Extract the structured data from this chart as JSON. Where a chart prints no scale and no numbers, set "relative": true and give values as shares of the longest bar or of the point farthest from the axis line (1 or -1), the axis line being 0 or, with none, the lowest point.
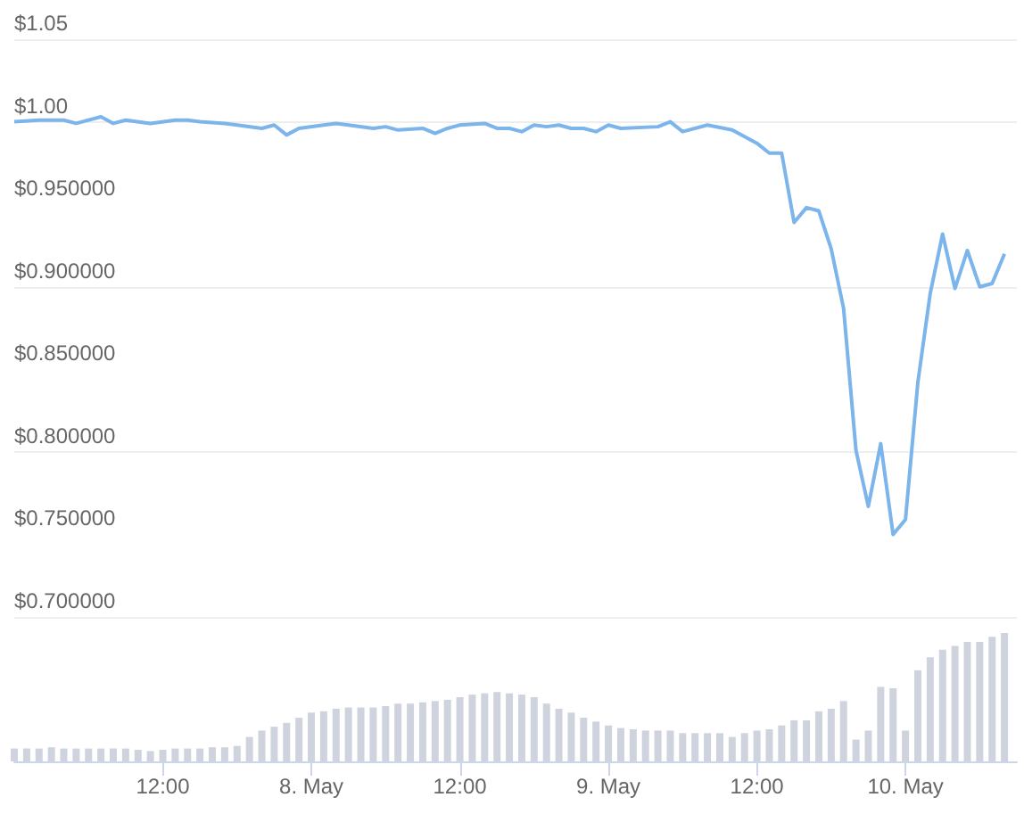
{
  "chart_data": [
    {
      "type": "line",
      "x": [
        "--05-07T00:00",
        "--05-07T02:00",
        "--05-07T04:00",
        "--05-07T05:00",
        "--05-07T07:00",
        "--05-07T08:00",
        "--05-07T09:00",
        "--05-07T11:00",
        "--05-07T13:00",
        "--05-07T14:00",
        "--05-07T15:00",
        "--05-07T17:00",
        "--05-07T18:00",
        "--05-07T20:00",
        "--05-07T21:00",
        "--05-07T22:00",
        "--05-07T23:00",
        "--05-08T01:00",
        "--05-08T02:00",
        "--05-08T03:00",
        "--05-08T05:00",
        "--05-08T06:00",
        "--05-08T07:00",
        "--05-08T09:00",
        "--05-08T10:00",
        "--05-08T11:00",
        "--05-08T12:00",
        "--05-08T14:00",
        "--05-08T15:00",
        "--05-08T16:00",
        "--05-08T17:00",
        "--05-08T18:00",
        "--05-08T19:00",
        "--05-08T20:00",
        "--05-08T21:00",
        "--05-08T22:00",
        "--05-08T23:00",
        "--05-09T00:00",
        "--05-09T01:00",
        "--05-09T04:00",
        "--05-09T05:00",
        "--05-09T06:00",
        "--05-09T08:00",
        "--05-09T10:00",
        "--05-09T11:00",
        "--05-09T12:00",
        "--05-09T13:00",
        "--05-09T14:00",
        "--05-09T15:00",
        "--05-09T16:00",
        "--05-09T17:00",
        "--05-09T18:00",
        "--05-09T19:00",
        "--05-09T20:00",
        "--05-09T21:00",
        "--05-09T22:00",
        "--05-09T23:00",
        "--05-10T00:00",
        "--05-10T01:00",
        "--05-10T02:00",
        "--05-10T03:00",
        "--05-10T04:00",
        "--05-10T05:00",
        "--05-10T06:00",
        "--05-10T07:00",
        "--05-10T08:00"
      ],
      "series": [
        {
          "color": "#7cb5ec",
          "values": [
            1.0,
            1.001,
            1.001,
            0.999,
            1.003,
            0.999,
            1.001,
            0.999,
            1.001,
            1.001,
            1.0,
            0.999,
            0.998,
            0.996,
            0.998,
            0.992,
            0.996,
            0.998,
            0.999,
            0.998,
            0.996,
            0.997,
            0.995,
            0.996,
            0.993,
            0.996,
            0.998,
            0.999,
            0.996,
            0.996,
            0.994,
            0.998,
            0.997,
            0.998,
            0.996,
            0.996,
            0.994,
            0.998,
            0.996,
            0.997,
            1.0,
            0.994,
            0.998,
            0.995,
            0.991,
            0.987,
            0.981,
            0.981,
            0.939,
            0.948,
            0.946,
            0.923,
            0.887,
            0.801,
            0.767,
            0.805,
            0.75,
            0.759,
            0.842,
            0.896,
            0.932,
            0.899,
            0.922,
            0.9,
            0.902,
            0.92
          ]
        }
      ],
      "xlim": [
        "--05-07T00:00",
        "--05-10T09:00"
      ],
      "ylim": [
        0.7,
        1.05
      ],
      "yticks": [
        {
          "value": 0.7,
          "label": "$0.700000"
        },
        {
          "value": 0.75,
          "label": "$0.750000"
        },
        {
          "value": 0.8,
          "label": "$0.800000"
        },
        {
          "value": 0.85,
          "label": "$0.850000"
        },
        {
          "value": 0.9,
          "label": "$0.900000"
        },
        {
          "value": 0.95,
          "label": "$0.950000"
        },
        {
          "value": 1.0,
          "label": "$1.00"
        },
        {
          "value": 1.05,
          "label": "$1.05"
        }
      ],
      "grid": "y",
      "marker": "none",
      "tick_labels": "y"
    },
    {
      "type": "bar",
      "relative": true,
      "x": [
        "--05-07T00:00",
        "--05-07T01:00",
        "--05-07T02:00",
        "--05-07T03:00",
        "--05-07T04:00",
        "--05-07T05:00",
        "--05-07T06:00",
        "--05-07T07:00",
        "--05-07T08:00",
        "--05-07T09:00",
        "--05-07T10:00",
        "--05-07T11:00",
        "--05-07T12:00",
        "--05-07T13:00",
        "--05-07T14:00",
        "--05-07T15:00",
        "--05-07T16:00",
        "--05-07T17:00",
        "--05-07T18:00",
        "--05-07T19:00",
        "--05-07T20:00",
        "--05-07T21:00",
        "--05-07T22:00",
        "--05-07T23:00",
        "--05-08T00:00",
        "--05-08T01:00",
        "--05-08T02:00",
        "--05-08T03:00",
        "--05-08T04:00",
        "--05-08T05:00",
        "--05-08T06:00",
        "--05-08T07:00",
        "--05-08T08:00",
        "--05-08T09:00",
        "--05-08T10:00",
        "--05-08T11:00",
        "--05-08T12:00",
        "--05-08T13:00",
        "--05-08T14:00",
        "--05-08T15:00",
        "--05-08T16:00",
        "--05-08T17:00",
        "--05-08T18:00",
        "--05-08T19:00",
        "--05-08T20:00",
        "--05-08T21:00",
        "--05-08T22:00",
        "--05-08T23:00",
        "--05-09T00:00",
        "--05-09T01:00",
        "--05-09T02:00",
        "--05-09T03:00",
        "--05-09T04:00",
        "--05-09T05:00",
        "--05-09T06:00",
        "--05-09T07:00",
        "--05-09T08:00",
        "--05-09T09:00",
        "--05-09T10:00",
        "--05-09T11:00",
        "--05-09T12:00",
        "--05-09T13:00",
        "--05-09T14:00",
        "--05-09T15:00",
        "--05-09T16:00",
        "--05-09T17:00",
        "--05-09T18:00",
        "--05-09T19:00",
        "--05-09T20:00",
        "--05-09T21:00",
        "--05-09T22:00",
        "--05-09T23:00",
        "--05-10T00:00",
        "--05-10T01:00",
        "--05-10T02:00",
        "--05-10T03:00",
        "--05-10T04:00",
        "--05-10T05:00",
        "--05-10T06:00",
        "--05-10T07:00",
        "--05-10T08:00"
      ],
      "series": [
        {
          "color": "#cfd3dd",
          "values": [
            0.1,
            0.1,
            0.1,
            0.11,
            0.1,
            0.1,
            0.1,
            0.1,
            0.1,
            0.1,
            0.09,
            0.08,
            0.09,
            0.1,
            0.1,
            0.1,
            0.11,
            0.11,
            0.12,
            0.19,
            0.24,
            0.27,
            0.3,
            0.34,
            0.38,
            0.39,
            0.41,
            0.42,
            0.42,
            0.42,
            0.43,
            0.45,
            0.45,
            0.46,
            0.47,
            0.48,
            0.5,
            0.52,
            0.53,
            0.54,
            0.53,
            0.52,
            0.5,
            0.45,
            0.41,
            0.38,
            0.34,
            0.31,
            0.28,
            0.26,
            0.25,
            0.24,
            0.24,
            0.24,
            0.22,
            0.22,
            0.22,
            0.22,
            0.19,
            0.22,
            0.24,
            0.25,
            0.28,
            0.32,
            0.32,
            0.39,
            0.41,
            0.47,
            0.17,
            0.24,
            0.58,
            0.57,
            0.24,
            0.71,
            0.81,
            0.87,
            0.9,
            0.93,
            0.93,
            0.97,
            1.0
          ]
        }
      ],
      "xlim": [
        "--05-07T00:00",
        "--05-10T09:00"
      ],
      "xticks": [
        {
          "value": "--05-07T12:00",
          "label": "12:00"
        },
        {
          "value": "--05-08",
          "label": "8. May"
        },
        {
          "value": "--05-08T12:00",
          "label": "12:00"
        },
        {
          "value": "--05-09",
          "label": "9. May"
        },
        {
          "value": "--05-09T12:00",
          "label": "12:00"
        },
        {
          "value": "--05-10",
          "label": "10. May"
        }
      ],
      "tick_labels": "x"
    }
  ]
}
